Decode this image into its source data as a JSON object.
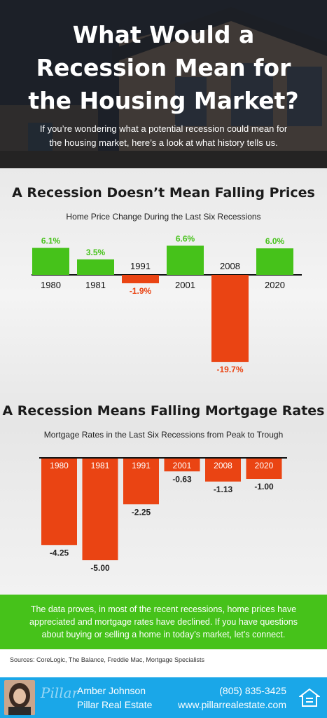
{
  "header": {
    "title_lines": [
      "What Would a",
      "Recession Mean for",
      "the Housing Market?"
    ],
    "intro_lines": [
      "If you’re wondering what a potential recession could mean for",
      "the housing market, here’s a look at what history tells us."
    ]
  },
  "section1": {
    "title": "A Recession Doesn’t Mean Falling Prices",
    "subtitle": "Home Price Change During the Last Six Recessions"
  },
  "section2": {
    "title": "A Recession Means Falling Mortgage Rates",
    "subtitle": "Mortgage Rates in the Last Six Recessions from Peak to Trough"
  },
  "colors": {
    "positive": "#46c21a",
    "negative": "#ea4413",
    "cta": "#46c21a",
    "footer": "#1aa7e8"
  },
  "chart_data": [
    {
      "type": "bar",
      "title": "Home Price Change During the Last Six Recessions",
      "categories": [
        "1980",
        "1981",
        "1991",
        "2001",
        "2008",
        "2020"
      ],
      "values": [
        6.1,
        3.5,
        -1.9,
        6.6,
        -19.7,
        6.0
      ],
      "value_labels": [
        "6.1%",
        "3.5%",
        "-1.9%",
        "6.6%",
        "-19.7%",
        "6.0%"
      ],
      "unit": "%",
      "grid": false,
      "legend": "none"
    },
    {
      "type": "bar",
      "title": "Mortgage Rates in the Last Six Recessions from Peak to Trough",
      "categories": [
        "1980",
        "1981",
        "1991",
        "2001",
        "2008",
        "2020"
      ],
      "values": [
        -4.25,
        -5.0,
        -2.25,
        -0.63,
        -1.13,
        -1.0
      ],
      "value_labels": [
        "-4.25",
        "-5.00",
        "-2.25",
        "-0.63",
        "-1.13",
        "-1.00"
      ],
      "grid": false,
      "legend": "none"
    }
  ],
  "cta": {
    "lines": [
      "The data proves, in most of the recent recessions, home prices have",
      "appreciated and mortgage rates have declined. If you have questions",
      "about buying or selling a home in today’s market, let’s connect."
    ]
  },
  "sources": "Sources: CoreLogic, The Balance, Freddie Mac, Mortgage Specialists",
  "footer": {
    "logo_text": "Pillar",
    "name": "Amber Johnson",
    "company": "Pillar Real Estate",
    "phone": "(805) 835-3425",
    "website": "www.pillarrealestate.com",
    "avatar_icon": "agent-photo",
    "badge_icon": "equal-housing-opportunity-icon"
  }
}
